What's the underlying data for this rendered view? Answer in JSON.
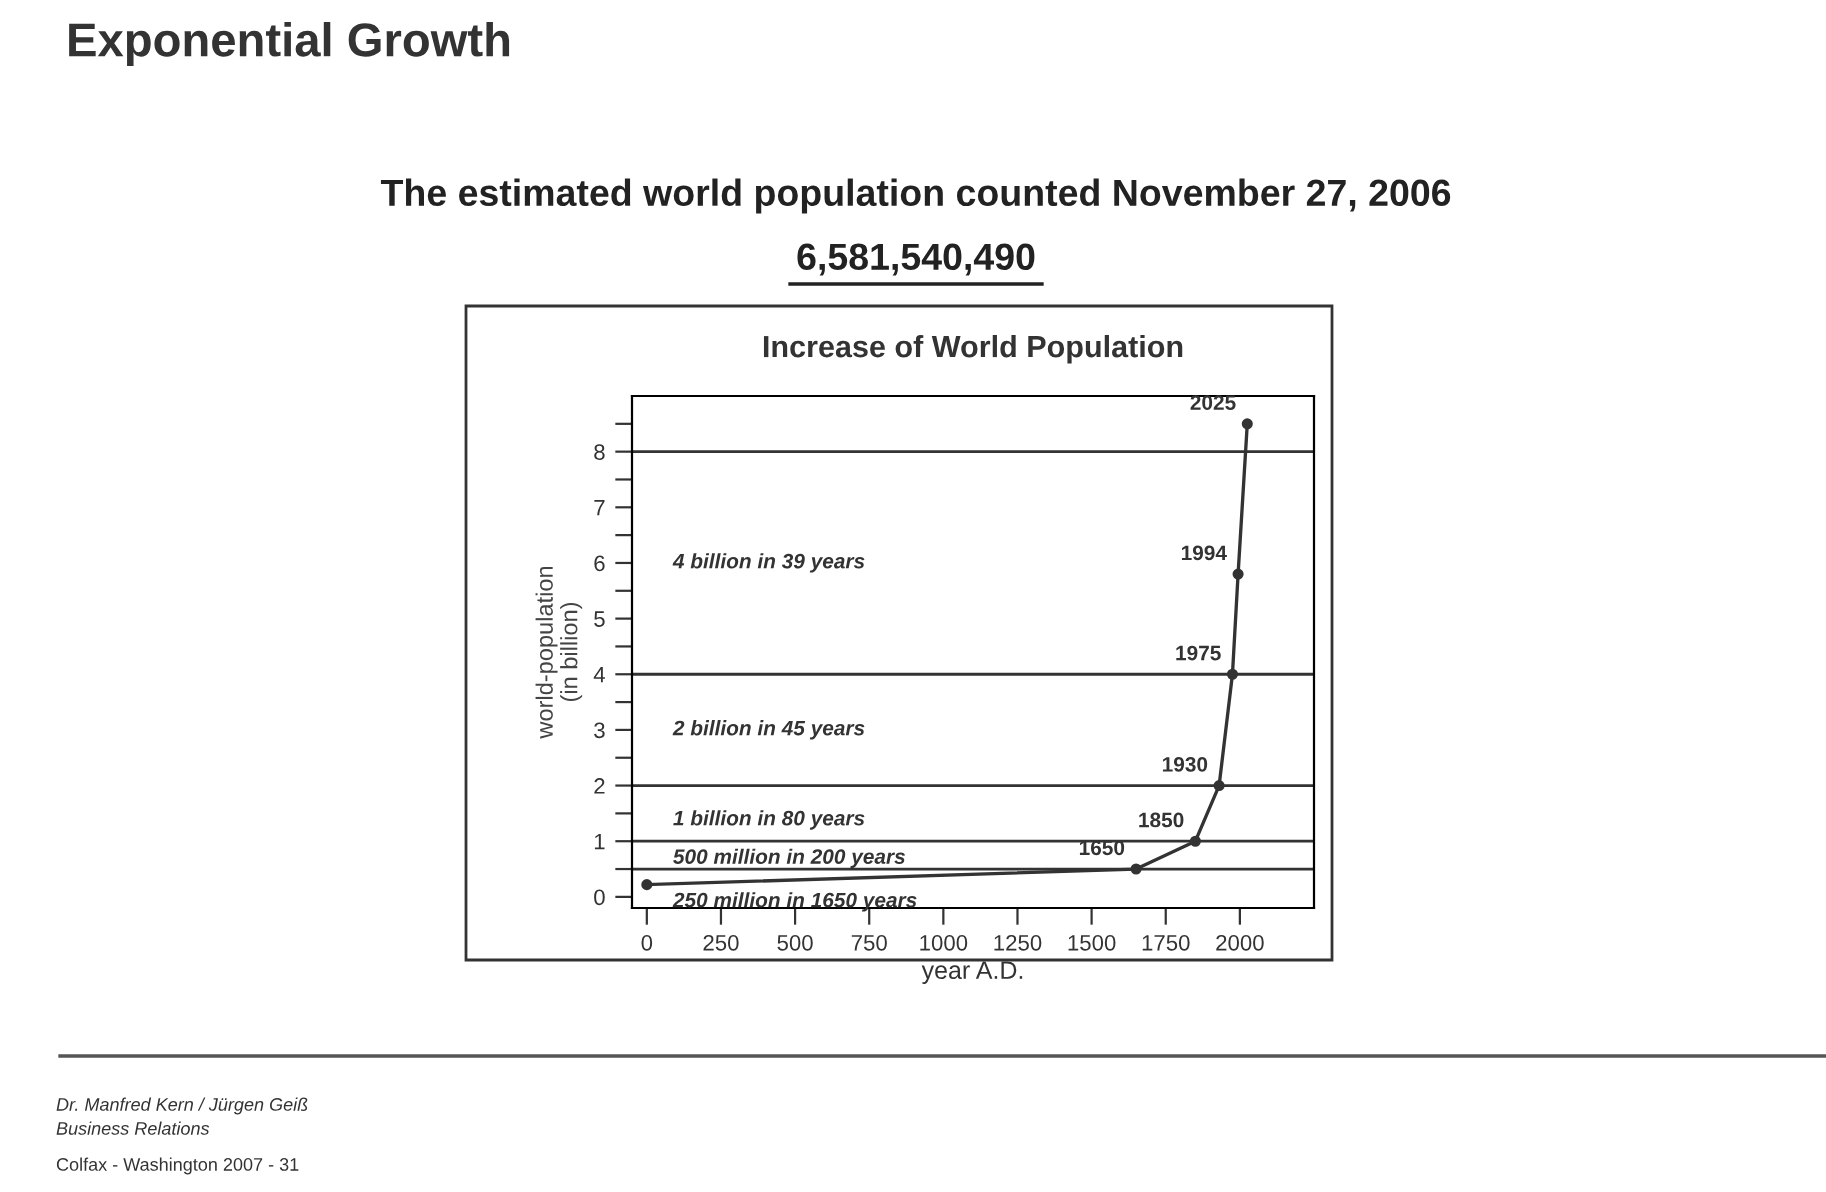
{
  "chart_data": [
    {
      "type": "other",
      "title": "Exponential Growth",
      "subtitle": "The estimated world population counted November 27, 2006",
      "annotations": [
        "6,581,540,490",
        "Dr. Manfred Kern / Jürgen Geiß",
        "Business Relations",
        "Colfax - Washington 2007 - 31"
      ]
    },
    {
      "type": "line",
      "title": "Increase of World Population",
      "xlabel": "year A.D.",
      "ylabel": "world-population\n(in billion)",
      "series": [
        {
          "color": "#333333",
          "x": [
            0,
            1650,
            1850,
            1930,
            1975,
            1994,
            2025
          ],
          "values": [
            0.22,
            0.5,
            1.0,
            2.0,
            4.0,
            5.8,
            8.5
          ]
        }
      ],
      "marker": "circle",
      "line_style": "solid",
      "grid": false,
      "xlim": [
        -50,
        2250
      ],
      "xticks": [
        0,
        250,
        500,
        750,
        1000,
        1250,
        1500,
        1750,
        2000
      ],
      "ylim": [
        -0.2,
        9
      ],
      "yticks": [
        0,
        {
          "value": 0.5,
          "label": null
        },
        1,
        {
          "value": 1.5,
          "label": null
        },
        2,
        {
          "value": 2.5,
          "label": null
        },
        3,
        {
          "value": 3.5,
          "label": null
        },
        4,
        {
          "value": 4.5,
          "label": null
        },
        5,
        {
          "value": 5.5,
          "label": null
        },
        6,
        {
          "value": 6.5,
          "label": null
        },
        7,
        {
          "value": 7.5,
          "label": null
        },
        8,
        {
          "value": 8.5,
          "label": null
        }
      ],
      "ref_lines": [
        {
          "axis": "y",
          "value": 0.5,
          "color": "#333333"
        },
        {
          "axis": "y",
          "value": 1,
          "color": "#333333"
        },
        {
          "axis": "y",
          "value": 2,
          "color": "#333333"
        },
        {
          "axis": "y",
          "value": 4,
          "color": "#333333"
        },
        {
          "axis": "y",
          "value": 8,
          "color": "#333333"
        }
      ],
      "annotations": [
        {
          "text": "2025",
          "x": 2025,
          "y": 8.5
        },
        {
          "text": "1994",
          "x": 1994,
          "y": 5.8
        },
        {
          "text": "1975",
          "x": 1975,
          "y": 4.0
        },
        {
          "text": "1930",
          "x": 1930,
          "y": 2.0
        },
        {
          "text": "1850",
          "x": 1850,
          "y": 1.0
        },
        {
          "text": "1650",
          "x": 1650,
          "y": 0.5
        },
        "4 billion in 39 years",
        "2 billion in 45 years",
        "1 billion in 80 years",
        "500 million in 200 years",
        "250 million in 1650 years"
      ]
    }
  ]
}
